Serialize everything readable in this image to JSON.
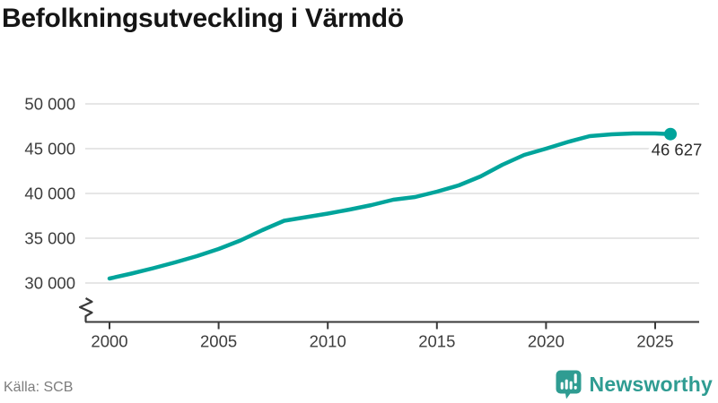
{
  "title": "Befolkningsutveckling i Värmdö",
  "source": "Källa: SCB",
  "branding": {
    "wordmark": "Newsworthy",
    "logo_icon": "bar-chart-speech-bubble-icon",
    "color": "#2f9c92"
  },
  "colors": {
    "line": "#00a49b",
    "grid": "#e3e3e3",
    "axis": "#3a3a3a",
    "tick_text": "#3d3d3d",
    "value_label_text": "#2b2b2b",
    "title_text": "#151515",
    "source_text": "#7d7d7d"
  },
  "chart_data": {
    "type": "line",
    "title": "Befolkningsutveckling i Värmdö",
    "xlabel": "",
    "ylabel": "",
    "x": [
      2000,
      2001,
      2002,
      2003,
      2004,
      2005,
      2006,
      2007,
      2008,
      2009,
      2010,
      2011,
      2012,
      2013,
      2014,
      2015,
      2016,
      2017,
      2018,
      2019,
      2020,
      2021,
      2022,
      2023,
      2024,
      2025
    ],
    "values": [
      30500,
      31050,
      31650,
      32300,
      33000,
      33800,
      34750,
      35900,
      36950,
      37350,
      37750,
      38200,
      38700,
      39300,
      39600,
      40200,
      40900,
      41900,
      43200,
      44300,
      45000,
      45750,
      46400,
      46600,
      46700,
      46700
    ],
    "latest_point": {
      "x": 2025.7,
      "value": 46627,
      "label": "46 627"
    },
    "x_ticks": [
      {
        "value": 2000,
        "label": "2000"
      },
      {
        "value": 2005,
        "label": "2005"
      },
      {
        "value": 2010,
        "label": "2010"
      },
      {
        "value": 2015,
        "label": "2015"
      },
      {
        "value": 2020,
        "label": "2020"
      },
      {
        "value": 2025,
        "label": "2025"
      }
    ],
    "y_ticks": [
      {
        "value": 30000,
        "label": "30 000"
      },
      {
        "value": 35000,
        "label": "35 000"
      },
      {
        "value": 40000,
        "label": "40 000"
      },
      {
        "value": 45000,
        "label": "45 000"
      },
      {
        "value": 50000,
        "label": "50 000"
      }
    ],
    "ylim": [
      30000,
      50000
    ],
    "xlim": [
      1998.9,
      2027
    ],
    "grid": "horizontal",
    "legend": "none",
    "axis_break_bottom_left": true,
    "line_color": "#00a49b"
  }
}
